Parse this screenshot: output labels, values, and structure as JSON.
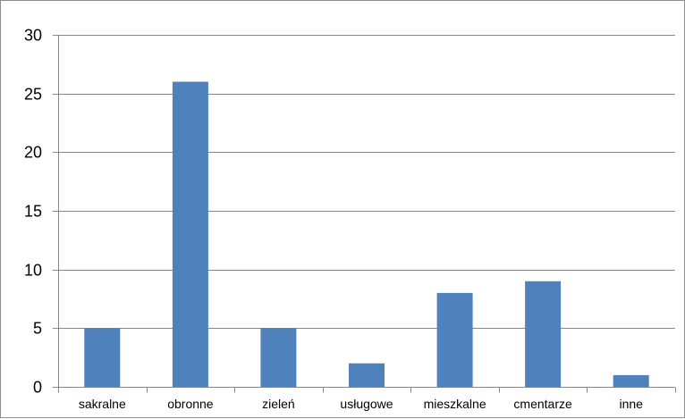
{
  "chart_data": {
    "type": "bar",
    "categories": [
      "sakralne",
      "obronne",
      "zieleń",
      "usługowe",
      "mieszkalne",
      "cmentarze",
      "inne"
    ],
    "values": [
      5,
      26,
      5,
      2,
      8,
      9,
      1
    ],
    "title": "",
    "xlabel": "",
    "ylabel": "",
    "ylim": [
      0,
      30
    ],
    "yticks": [
      0,
      5,
      10,
      15,
      20,
      25,
      30
    ],
    "grid": true,
    "legend": "none",
    "bar_color": "#4f81bd",
    "grid_color": "#868686",
    "axis_color": "#868686"
  }
}
